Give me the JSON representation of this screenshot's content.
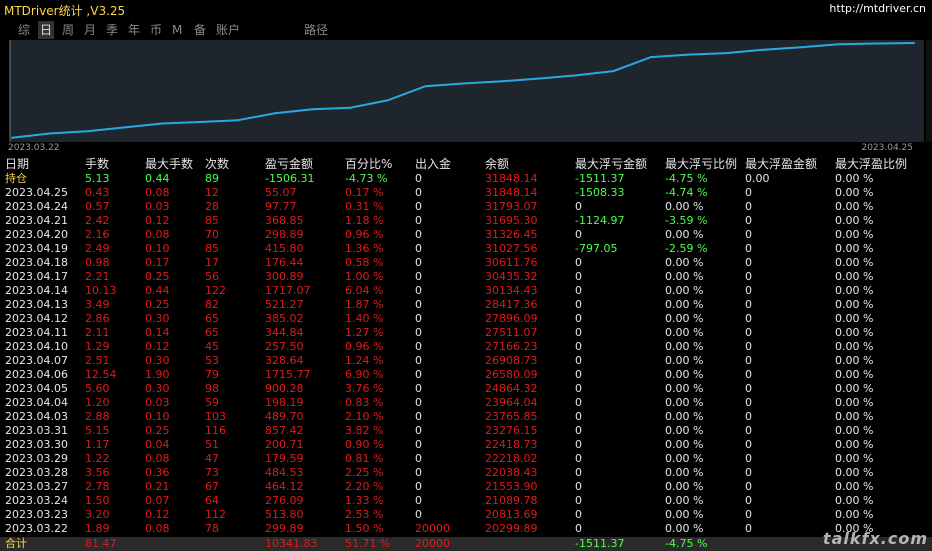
{
  "app": {
    "title": "MTDriver统计 ,V3.25",
    "url": "http://mtdriver.cn"
  },
  "menu": [
    {
      "label": "综",
      "active": false
    },
    {
      "label": "日",
      "active": true
    },
    {
      "label": "周",
      "active": false
    },
    {
      "label": "月",
      "active": false
    },
    {
      "label": "季",
      "active": false
    },
    {
      "label": "年",
      "active": false
    },
    {
      "label": "币",
      "active": false
    },
    {
      "label": "M",
      "active": false
    },
    {
      "label": "备",
      "active": false
    },
    {
      "label": "账户",
      "active": false
    },
    {
      "label": "路径",
      "active": false
    }
  ],
  "chart_data": {
    "type": "line",
    "x_start_label": "2023.03.22",
    "x_end_label": "2023.04.25",
    "x": [
      "2023.03.22",
      "2023.03.23",
      "2023.03.24",
      "2023.03.27",
      "2023.03.28",
      "2023.03.29",
      "2023.03.30",
      "2023.03.31",
      "2023.04.03",
      "2023.04.04",
      "2023.04.05",
      "2023.04.06",
      "2023.04.07",
      "2023.04.10",
      "2023.04.11",
      "2023.04.12",
      "2023.04.13",
      "2023.04.14",
      "2023.04.17",
      "2023.04.18",
      "2023.04.19",
      "2023.04.20",
      "2023.04.21",
      "2023.04.24",
      "2023.04.25"
    ],
    "values": [
      20299.89,
      20813.69,
      21089.78,
      21553.9,
      22038.43,
      22218.02,
      22418.73,
      23276.15,
      23765.85,
      23964.04,
      24864.32,
      26580.09,
      26908.73,
      27166.23,
      27511.07,
      27896.09,
      28417.36,
      30134.43,
      30435.32,
      30611.76,
      31027.56,
      31326.45,
      31695.3,
      31793.07,
      31848.14
    ],
    "color": "#2aa8e0",
    "grid": false
  },
  "table": {
    "headers": [
      "日期",
      "手数",
      "最大手数",
      "次数",
      "盈亏金额",
      "百分比%",
      "出入金",
      "余额",
      "最大浮亏金额",
      "最大浮亏比例",
      "最大浮盈金额",
      "最大浮盈比例"
    ],
    "holding": {
      "label": "持仓",
      "lots": "5.13",
      "max_lots": "0.44",
      "count": "89",
      "pl": "-1506.31",
      "pct": "-4.73 %",
      "io": "0",
      "balance": "31848.14",
      "max_dd": "-1511.37",
      "max_dd_pct": "-4.75 %",
      "max_fp": "0.00",
      "max_fp_pct": "0.00 %"
    },
    "rows": [
      {
        "date": "2023.04.25",
        "lots": "0.43",
        "max_lots": "0.08",
        "count": "12",
        "pl": "55.07",
        "pct": "0.17 %",
        "io": "0",
        "balance": "31848.14",
        "max_dd": "-1508.33",
        "max_dd_pct": "-4.74 %",
        "max_fp": "0",
        "max_fp_pct": "0.00 %"
      },
      {
        "date": "2023.04.24",
        "lots": "0.57",
        "max_lots": "0.03",
        "count": "28",
        "pl": "97.77",
        "pct": "0.31 %",
        "io": "0",
        "balance": "31793.07",
        "max_dd": "0",
        "max_dd_pct": "0.00 %",
        "max_fp": "0",
        "max_fp_pct": "0.00 %"
      },
      {
        "date": "2023.04.21",
        "lots": "2.42",
        "max_lots": "0.12",
        "count": "85",
        "pl": "368.85",
        "pct": "1.18 %",
        "io": "0",
        "balance": "31695.30",
        "max_dd": "-1124.97",
        "max_dd_pct": "-3.59 %",
        "max_fp": "0",
        "max_fp_pct": "0.00 %"
      },
      {
        "date": "2023.04.20",
        "lots": "2.16",
        "max_lots": "0.08",
        "count": "70",
        "pl": "298.89",
        "pct": "0.96 %",
        "io": "0",
        "balance": "31326.45",
        "max_dd": "0",
        "max_dd_pct": "0.00 %",
        "max_fp": "0",
        "max_fp_pct": "0.00 %"
      },
      {
        "date": "2023.04.19",
        "lots": "2.49",
        "max_lots": "0.10",
        "count": "85",
        "pl": "415.80",
        "pct": "1.36 %",
        "io": "0",
        "balance": "31027.56",
        "max_dd": "-797.05",
        "max_dd_pct": "-2.59 %",
        "max_fp": "0",
        "max_fp_pct": "0.00 %"
      },
      {
        "date": "2023.04.18",
        "lots": "0.98",
        "max_lots": "0.17",
        "count": "17",
        "pl": "176.44",
        "pct": "0.58 %",
        "io": "0",
        "balance": "30611.76",
        "max_dd": "0",
        "max_dd_pct": "0.00 %",
        "max_fp": "0",
        "max_fp_pct": "0.00 %"
      },
      {
        "date": "2023.04.17",
        "lots": "2.21",
        "max_lots": "0.25",
        "count": "56",
        "pl": "300.89",
        "pct": "1.00 %",
        "io": "0",
        "balance": "30435.32",
        "max_dd": "0",
        "max_dd_pct": "0.00 %",
        "max_fp": "0",
        "max_fp_pct": "0.00 %"
      },
      {
        "date": "2023.04.14",
        "lots": "10.13",
        "max_lots": "0.44",
        "count": "122",
        "pl": "1717.07",
        "pct": "6.04 %",
        "io": "0",
        "balance": "30134.43",
        "max_dd": "0",
        "max_dd_pct": "0.00 %",
        "max_fp": "0",
        "max_fp_pct": "0.00 %"
      },
      {
        "date": "2023.04.13",
        "lots": "3.49",
        "max_lots": "0.25",
        "count": "82",
        "pl": "521.27",
        "pct": "1.87 %",
        "io": "0",
        "balance": "28417.36",
        "max_dd": "0",
        "max_dd_pct": "0.00 %",
        "max_fp": "0",
        "max_fp_pct": "0.00 %"
      },
      {
        "date": "2023.04.12",
        "lots": "2.86",
        "max_lots": "0.30",
        "count": "65",
        "pl": "385.02",
        "pct": "1.40 %",
        "io": "0",
        "balance": "27896.09",
        "max_dd": "0",
        "max_dd_pct": "0.00 %",
        "max_fp": "0",
        "max_fp_pct": "0.00 %"
      },
      {
        "date": "2023.04.11",
        "lots": "2.11",
        "max_lots": "0.14",
        "count": "65",
        "pl": "344.84",
        "pct": "1.27 %",
        "io": "0",
        "balance": "27511.07",
        "max_dd": "0",
        "max_dd_pct": "0.00 %",
        "max_fp": "0",
        "max_fp_pct": "0.00 %"
      },
      {
        "date": "2023.04.10",
        "lots": "1.29",
        "max_lots": "0.12",
        "count": "45",
        "pl": "257.50",
        "pct": "0.96 %",
        "io": "0",
        "balance": "27166.23",
        "max_dd": "0",
        "max_dd_pct": "0.00 %",
        "max_fp": "0",
        "max_fp_pct": "0.00 %"
      },
      {
        "date": "2023.04.07",
        "lots": "2.51",
        "max_lots": "0.30",
        "count": "53",
        "pl": "328.64",
        "pct": "1.24 %",
        "io": "0",
        "balance": "26908.73",
        "max_dd": "0",
        "max_dd_pct": "0.00 %",
        "max_fp": "0",
        "max_fp_pct": "0.00 %"
      },
      {
        "date": "2023.04.06",
        "lots": "12.54",
        "max_lots": "1.90",
        "count": "79",
        "pl": "1715.77",
        "pct": "6.90 %",
        "io": "0",
        "balance": "26580.09",
        "max_dd": "0",
        "max_dd_pct": "0.00 %",
        "max_fp": "0",
        "max_fp_pct": "0.00 %"
      },
      {
        "date": "2023.04.05",
        "lots": "5.60",
        "max_lots": "0.30",
        "count": "98",
        "pl": "900.28",
        "pct": "3.76 %",
        "io": "0",
        "balance": "24864.32",
        "max_dd": "0",
        "max_dd_pct": "0.00 %",
        "max_fp": "0",
        "max_fp_pct": "0.00 %"
      },
      {
        "date": "2023.04.04",
        "lots": "1.20",
        "max_lots": "0.03",
        "count": "59",
        "pl": "198.19",
        "pct": "0.83 %",
        "io": "0",
        "balance": "23964.04",
        "max_dd": "0",
        "max_dd_pct": "0.00 %",
        "max_fp": "0",
        "max_fp_pct": "0.00 %"
      },
      {
        "date": "2023.04.03",
        "lots": "2.88",
        "max_lots": "0.10",
        "count": "103",
        "pl": "489.70",
        "pct": "2.10 %",
        "io": "0",
        "balance": "23765.85",
        "max_dd": "0",
        "max_dd_pct": "0.00 %",
        "max_fp": "0",
        "max_fp_pct": "0.00 %"
      },
      {
        "date": "2023.03.31",
        "lots": "5.15",
        "max_lots": "0.25",
        "count": "116",
        "pl": "857.42",
        "pct": "3.82 %",
        "io": "0",
        "balance": "23276.15",
        "max_dd": "0",
        "max_dd_pct": "0.00 %",
        "max_fp": "0",
        "max_fp_pct": "0.00 %"
      },
      {
        "date": "2023.03.30",
        "lots": "1.17",
        "max_lots": "0.04",
        "count": "51",
        "pl": "200.71",
        "pct": "0.90 %",
        "io": "0",
        "balance": "22418.73",
        "max_dd": "0",
        "max_dd_pct": "0.00 %",
        "max_fp": "0",
        "max_fp_pct": "0.00 %"
      },
      {
        "date": "2023.03.29",
        "lots": "1.22",
        "max_lots": "0.08",
        "count": "47",
        "pl": "179.59",
        "pct": "0.81 %",
        "io": "0",
        "balance": "22218.02",
        "max_dd": "0",
        "max_dd_pct": "0.00 %",
        "max_fp": "0",
        "max_fp_pct": "0.00 %"
      },
      {
        "date": "2023.03.28",
        "lots": "3.56",
        "max_lots": "0.36",
        "count": "73",
        "pl": "484.53",
        "pct": "2.25 %",
        "io": "0",
        "balance": "22038.43",
        "max_dd": "0",
        "max_dd_pct": "0.00 %",
        "max_fp": "0",
        "max_fp_pct": "0.00 %"
      },
      {
        "date": "2023.03.27",
        "lots": "2.78",
        "max_lots": "0.21",
        "count": "67",
        "pl": "464.12",
        "pct": "2.20 %",
        "io": "0",
        "balance": "21553.90",
        "max_dd": "0",
        "max_dd_pct": "0.00 %",
        "max_fp": "0",
        "max_fp_pct": "0.00 %"
      },
      {
        "date": "2023.03.24",
        "lots": "1.50",
        "max_lots": "0.07",
        "count": "64",
        "pl": "276.09",
        "pct": "1.33 %",
        "io": "0",
        "balance": "21089.78",
        "max_dd": "0",
        "max_dd_pct": "0.00 %",
        "max_fp": "0",
        "max_fp_pct": "0.00 %"
      },
      {
        "date": "2023.03.23",
        "lots": "3.20",
        "max_lots": "0.12",
        "count": "112",
        "pl": "513.80",
        "pct": "2.53 %",
        "io": "0",
        "balance": "20813.69",
        "max_dd": "0",
        "max_dd_pct": "0.00 %",
        "max_fp": "0",
        "max_fp_pct": "0.00 %"
      },
      {
        "date": "2023.03.22",
        "lots": "1.89",
        "max_lots": "0.08",
        "count": "78",
        "pl": "299.89",
        "pct": "1.50 %",
        "io": "20000",
        "balance": "20299.89",
        "max_dd": "0",
        "max_dd_pct": "0.00 %",
        "max_fp": "0",
        "max_fp_pct": "0.00 %"
      }
    ],
    "total": {
      "label": "合计",
      "lots": "81.47",
      "max_lots": "",
      "count": "",
      "pl": "10341.83",
      "pct": "51.71 %",
      "io": "20000",
      "balance": "",
      "max_dd": "-1511.37",
      "max_dd_pct": "-4.75 %",
      "max_fp": "",
      "max_fp_pct": ""
    }
  },
  "watermark": "talkfx.com",
  "colors": {
    "accent": "#ffd54a",
    "profit": "#e01b1b",
    "loss": "#4cff4c",
    "line": "#2aa8e0",
    "panel": "#1e252d"
  }
}
